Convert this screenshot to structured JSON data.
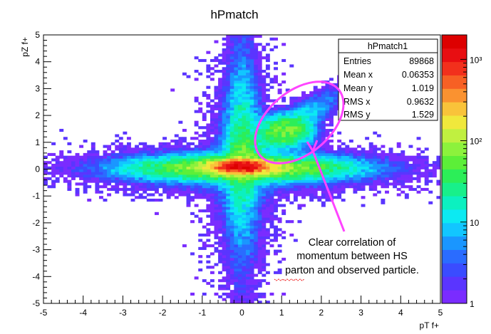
{
  "title": "hPmatch",
  "chart_data": {
    "type": "heatmap",
    "title": "hPmatch",
    "xlabel": "pT f+",
    "ylabel": "pZ f+",
    "xlim": [
      -5,
      5
    ],
    "ylim": [
      -5,
      5
    ],
    "x_ticks": [
      "-5",
      "-4",
      "-3",
      "-2",
      "-1",
      "0",
      "1",
      "2",
      "3",
      "4",
      "5"
    ],
    "y_ticks": [
      "-5",
      "-4",
      "-3",
      "-2",
      "-1",
      "0",
      "1",
      "2",
      "3",
      "4",
      "5"
    ],
    "z_scale": "log",
    "zlim": [
      1,
      2000
    ],
    "z_ticks": [
      "1",
      "10",
      "10²",
      "10³"
    ],
    "grid": false,
    "bins_x": 100,
    "bins_y": 100,
    "density_features": [
      {
        "feature": "peak",
        "x": 0.0,
        "y": 0.1,
        "count": 1500
      },
      {
        "feature": "horizontal band",
        "y": 0.1,
        "x_range": [
          -5,
          4
        ]
      },
      {
        "feature": "vertical band",
        "x": 0.0,
        "y_range": [
          -5,
          5
        ]
      },
      {
        "feature": "diagonal cluster",
        "x": 1.1,
        "y": 1.4,
        "count": 60
      }
    ]
  },
  "stats_box": {
    "name": "hPmatch1",
    "rows": [
      {
        "label": "Entries",
        "value": "89868"
      },
      {
        "label": "Mean x",
        "value": "0.06353"
      },
      {
        "label": "Mean y",
        "value": "1.019"
      },
      {
        "label": "RMS x",
        "value": "0.9632"
      },
      {
        "label": "RMS y",
        "value": "1.529"
      }
    ]
  },
  "annotation": {
    "lines": [
      "Clear correlation of",
      "momentum between HS",
      "parton and observed particle."
    ],
    "color": "#ff44ff",
    "underline_color": "#ee1111"
  },
  "colors": {
    "palette": [
      "#7a2cff",
      "#5a35ff",
      "#3a4cff",
      "#2a6cff",
      "#1a96ff",
      "#12c6ff",
      "#0ceaf2",
      "#0cf0c0",
      "#18f08a",
      "#2cee58",
      "#5cef38",
      "#8cf23c",
      "#c0f040",
      "#f0e83c",
      "#f9c33a",
      "#fa9230",
      "#f76024",
      "#f2301c",
      "#e80e12",
      "#dd0000"
    ]
  }
}
